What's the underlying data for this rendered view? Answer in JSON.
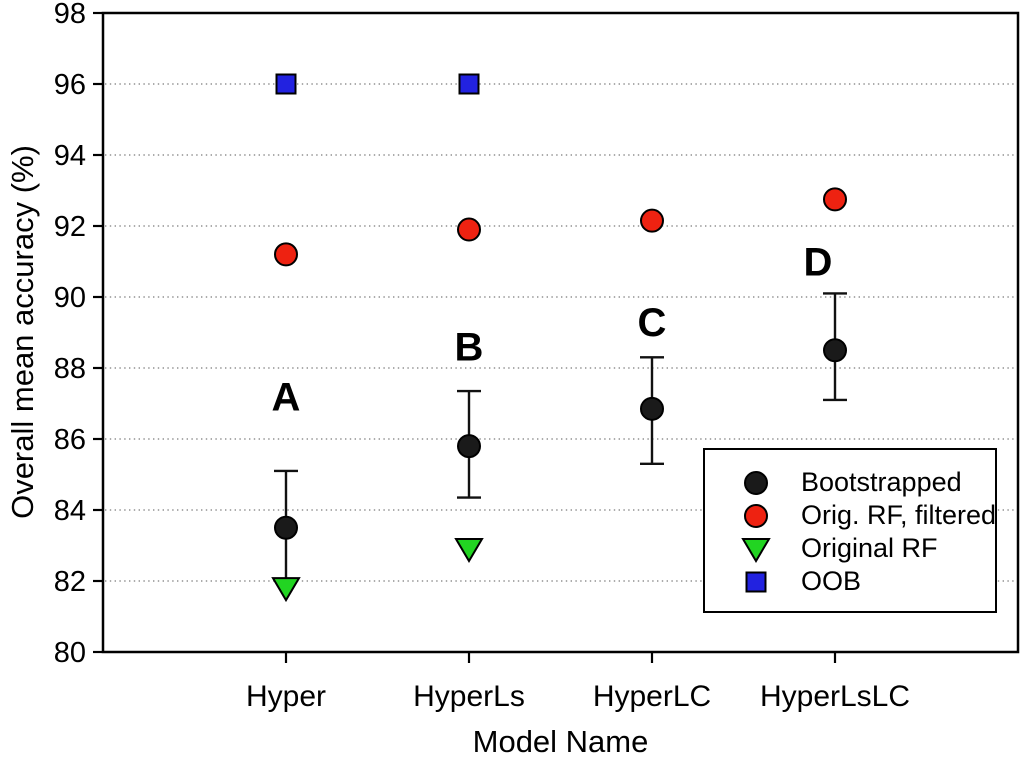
{
  "figure": {
    "background": "#ffffff",
    "grid_color": "#7a7a7a",
    "frame_color": "#000000"
  },
  "chart_data": {
    "type": "scatter",
    "title": "",
    "xlabel": "Model Name",
    "ylabel": "Overall mean accuracy (%)",
    "ylim": [
      80,
      98
    ],
    "yticks": [
      80,
      82,
      84,
      86,
      88,
      90,
      92,
      94,
      96,
      98
    ],
    "grid": "dotted horizontal lines at interior y ticks",
    "legend_position": "lower right",
    "categories": [
      "Hyper",
      "HyperLs",
      "HyperLC",
      "HyperLsLC"
    ],
    "category_positions": [
      0.2,
      0.4,
      0.6,
      0.8
    ],
    "series": [
      {
        "name": "Bootstrapped",
        "marker": "circle",
        "color": "#1a1a1a",
        "values": [
          83.5,
          85.8,
          86.85,
          88.5
        ],
        "error_low": [
          82.05,
          84.35,
          85.3,
          87.1
        ],
        "error_high": [
          85.1,
          87.35,
          88.3,
          90.1
        ]
      },
      {
        "name": "Orig. RF, filtered",
        "marker": "circle",
        "color": "#ee2211",
        "values": [
          91.2,
          91.9,
          92.15,
          92.75
        ]
      },
      {
        "name": "Original RF",
        "marker": "triangle-down",
        "color": "#22d422",
        "values": [
          81.8,
          82.9,
          null,
          null
        ]
      },
      {
        "name": "OOB",
        "marker": "square",
        "color": "#2222e0",
        "values": [
          96.0,
          96.0,
          null,
          null
        ]
      }
    ],
    "annotations": [
      {
        "text": "A",
        "category": 0,
        "value": 87.2,
        "dx": 0
      },
      {
        "text": "B",
        "category": 1,
        "value": 88.6,
        "dx": 0
      },
      {
        "text": "C",
        "category": 2,
        "value": 89.3,
        "dx": 0
      },
      {
        "text": "D",
        "category": 3,
        "value": 91.0,
        "dx": -17
      }
    ]
  }
}
